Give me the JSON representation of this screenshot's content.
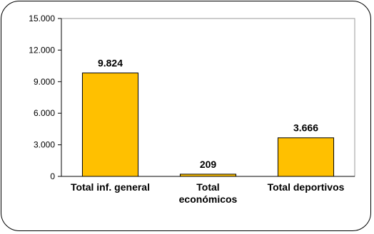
{
  "chart_data": {
    "type": "bar",
    "categories": [
      [
        "Total inf. general"
      ],
      [
        "Total",
        "económicos"
      ],
      [
        "Total deportivos"
      ]
    ],
    "values": [
      9824,
      209,
      3666
    ],
    "data_labels": [
      "9.824",
      "209",
      "3.666"
    ],
    "yticks": [
      0,
      3000,
      6000,
      9000,
      12000,
      15000
    ],
    "ytick_labels": [
      "0",
      "3.000",
      "6.000",
      "9.000",
      "12.000",
      "15.000"
    ],
    "ylim": [
      0,
      15000
    ],
    "grid": false,
    "legend": "none",
    "colors": {
      "bar_fill": "#FFC000",
      "bar_stroke": "#000000",
      "plot_border": "#9a9a9a",
      "axis": "#000000"
    }
  }
}
